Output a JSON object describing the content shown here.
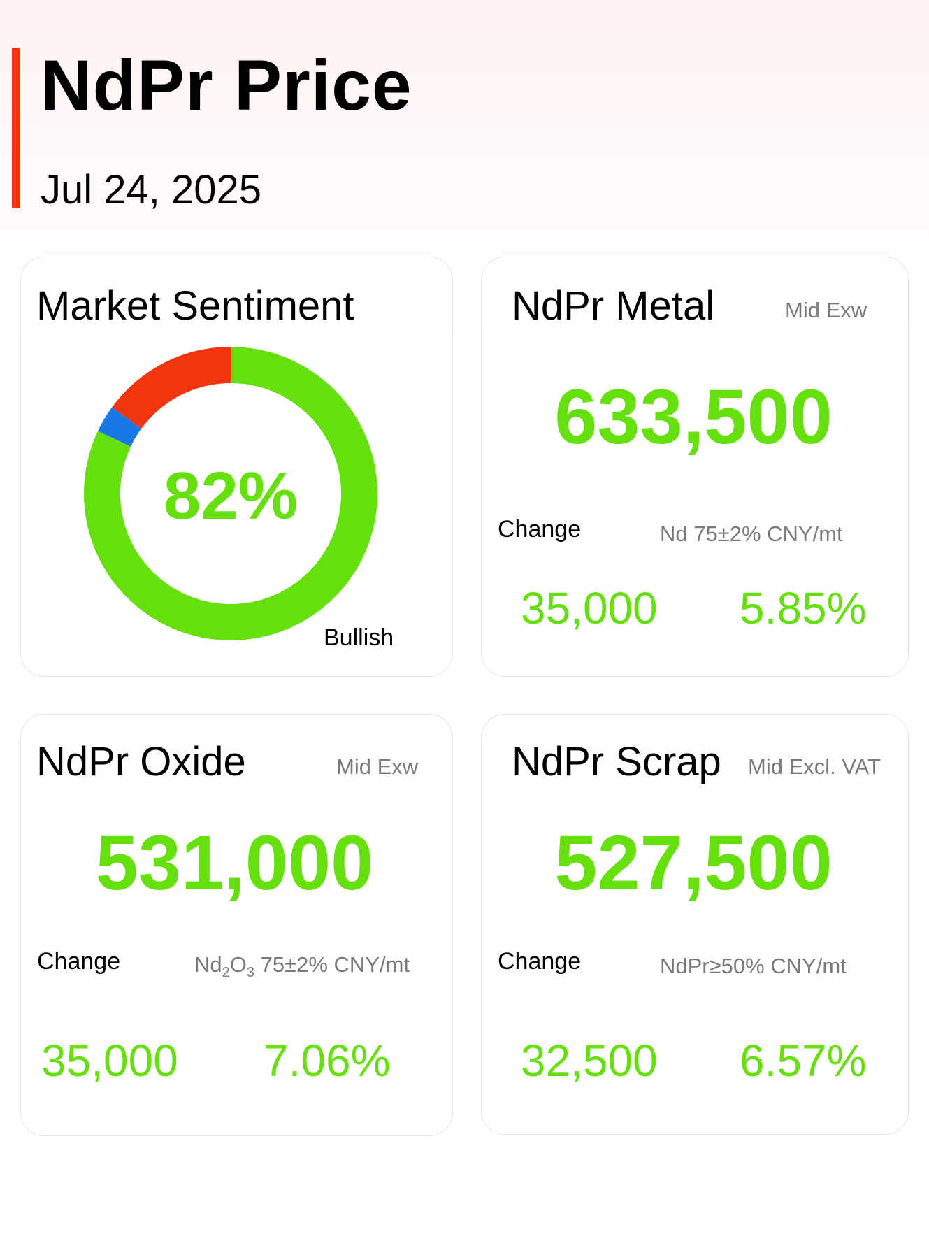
{
  "header": {
    "title": "NdPr Price",
    "date": "Jul 24, 2025"
  },
  "sentiment": {
    "title": "Market Sentiment",
    "percent_label": "82%",
    "caption": "Bullish",
    "chart_data": {
      "type": "pie",
      "values": [
        82,
        3,
        15
      ],
      "colors": [
        "#66e00d",
        "#1a78e6",
        "#f2350f"
      ]
    }
  },
  "metal": {
    "title": "NdPr Metal",
    "tag": "Mid  Exw",
    "price": "633,500",
    "change_label": "Change",
    "spec": "Nd 75±2% CNY/mt",
    "change_value": "35,000",
    "change_pct": "5.85%"
  },
  "oxide": {
    "title": "NdPr Oxide",
    "tag": "Mid  Exw",
    "price": "531,000",
    "change_label": "Change",
    "spec_prefix": "Nd",
    "spec_sub1": "2",
    "spec_mid": "O",
    "spec_sub2": "3",
    "spec_suffix": " 75±2% CNY/mt",
    "change_value": "35,000",
    "change_pct": "7.06%"
  },
  "scrap": {
    "title": "NdPr Scrap",
    "tag": "Mid  Excl. VAT",
    "price": "527,500",
    "change_label": "Change",
    "spec": "NdPr≥50% CNY/mt",
    "change_value": "32,500",
    "change_pct": "6.57%"
  },
  "colors": {
    "accent": "#f2350f",
    "positive": "#66e00d",
    "muted": "#7a7a7a"
  }
}
